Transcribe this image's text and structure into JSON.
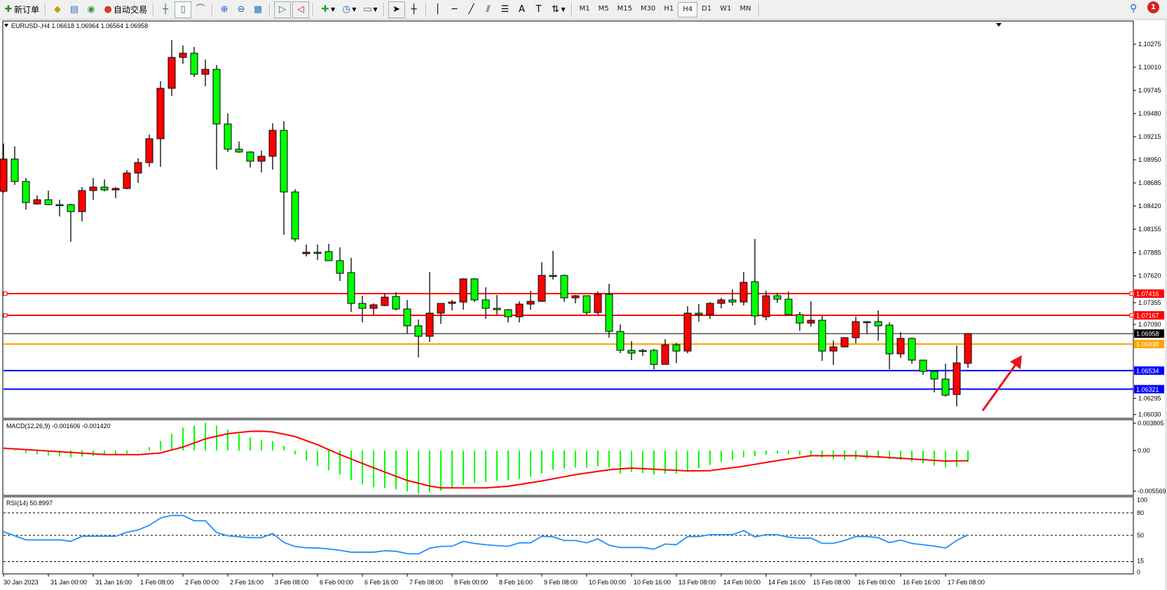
{
  "toolbar": {
    "new_order_label": "新订单",
    "auto_trading_label": "自动交易",
    "icons": [
      "new-order-icon",
      "history-icon",
      "market-watch-icon",
      "signals-icon",
      "auto-trading-icon",
      "bar-chart-icon",
      "candlestick-icon",
      "line-chart-icon",
      "zoom-in-icon",
      "zoom-out-icon",
      "tile-windows-icon",
      "chart-shift-icon",
      "autoscroll-icon",
      "indicators-icon",
      "periods-icon",
      "templates-icon",
      "cursor-icon",
      "crosshair-icon",
      "vertical-line-icon",
      "horizontal-line-icon",
      "trendline-icon",
      "channel-icon",
      "fibonacci-icon",
      "text-icon",
      "text-label-icon",
      "arrows-icon"
    ],
    "timeframes": [
      "M1",
      "M5",
      "M15",
      "M30",
      "H1",
      "H4",
      "D1",
      "W1",
      "MN"
    ],
    "active_timeframe": "H4",
    "notification_count": "1"
  },
  "chart": {
    "header": "EURUSD-,H4  1.06618 1.06964 1.06564 1.06958",
    "colors": {
      "bull": "#ff0000",
      "bear": "#00ff00",
      "macd_hist": "#00ff00",
      "macd_signal": "#ff0000",
      "rsi": "#1e90ff"
    },
    "price_ticks": [
      "1.10275",
      "1.10010",
      "1.09745",
      "1.09480",
      "1.09215",
      "1.08950",
      "1.08685",
      "1.08420",
      "1.08155",
      "1.07885",
      "1.07620",
      "1.07355",
      "1.07090",
      "1.06295",
      "1.06030"
    ],
    "price_tick_values": [
      1.10275,
      1.1001,
      1.09745,
      1.0948,
      1.09215,
      1.0895,
      1.08685,
      1.0842,
      1.08155,
      1.07885,
      1.0762,
      1.07355,
      1.0709,
      1.06295,
      1.0603
    ],
    "hlines": [
      {
        "price": 1.07416,
        "label": "1.07416",
        "color": "#ff0000"
      },
      {
        "price": 1.07167,
        "label": "1.07167",
        "color": "#ff0000"
      },
      {
        "price": 1.06958,
        "label": "1.06958",
        "color": "#000000"
      },
      {
        "price": 1.06838,
        "label": "1.06838",
        "color": "#ffa500"
      },
      {
        "price": 1.06534,
        "label": "1.06534",
        "color": "#0000ff"
      },
      {
        "price": 1.06321,
        "label": "1.06321",
        "color": "#0000ff"
      }
    ],
    "arrow_annotation": {
      "color": "#e8141e",
      "direction": "up-right"
    },
    "date_labels": [
      "30 Jan 2023",
      "31 Jan 00:00",
      "31 Jan 16:00",
      "1 Feb 08:00",
      "2 Feb 00:00",
      "2 Feb 16:00",
      "3 Feb 08:00",
      "6 Feb 00:00",
      "6 Feb 16:00",
      "7 Feb 08:00",
      "8 Feb 00:00",
      "8 Feb 16:00",
      "9 Feb 08:00",
      "10 Feb 00:00",
      "10 Feb 16:00",
      "13 Feb 08:00",
      "14 Feb 00:00",
      "14 Feb 16:00",
      "15 Feb 08:00",
      "16 Feb 00:00",
      "16 Feb 16:00",
      "17 Feb 08:00"
    ]
  },
  "chart_data": [
    {
      "type": "candlestick",
      "symbol": "EURUSD-",
      "timeframe": "H4",
      "ylim": [
        1.06015,
        1.1054
      ],
      "ohlc_order": [
        "open",
        "high",
        "low",
        "close"
      ],
      "candles": [
        [
          1.08589,
          1.09135,
          1.08573,
          1.08958
        ],
        [
          1.08958,
          1.09103,
          1.08661,
          1.08701
        ],
        [
          1.08701,
          1.08741,
          1.0838,
          1.0846
        ],
        [
          1.08444,
          1.08541,
          1.08436,
          1.08492
        ],
        [
          1.08492,
          1.08597,
          1.08428,
          1.08436
        ],
        [
          1.08436,
          1.08492,
          1.083,
          1.08432
        ],
        [
          1.08436,
          1.08444,
          1.08011,
          1.08356
        ],
        [
          1.08356,
          1.08637,
          1.08244,
          1.08597
        ],
        [
          1.08597,
          1.08741,
          1.08492,
          1.08637
        ],
        [
          1.08637,
          1.08725,
          1.08589,
          1.08605
        ],
        [
          1.08605,
          1.08637,
          1.08509,
          1.08621
        ],
        [
          1.08621,
          1.0883,
          1.08613,
          1.08798
        ],
        [
          1.08798,
          1.08966,
          1.08685,
          1.08918
        ],
        [
          1.08918,
          1.09239,
          1.0887,
          1.09191
        ],
        [
          1.09191,
          1.0985,
          1.0887,
          1.09769
        ],
        [
          1.09769,
          1.10323,
          1.09681,
          1.10123
        ],
        [
          1.10123,
          1.10259,
          1.1005,
          1.10171
        ],
        [
          1.10171,
          1.10243,
          1.09898,
          1.0993
        ],
        [
          1.0993,
          1.10098,
          1.09793,
          1.09986
        ],
        [
          1.09986,
          1.10034,
          1.08838,
          1.0936
        ],
        [
          1.0936,
          1.0948,
          1.09039,
          1.09071
        ],
        [
          1.09071,
          1.09159,
          1.09031,
          1.09039
        ],
        [
          1.09039,
          1.09047,
          1.08862,
          1.08934
        ],
        [
          1.08934,
          1.09055,
          1.08806,
          1.0899
        ],
        [
          1.0899,
          1.09368,
          1.08838,
          1.09287
        ],
        [
          1.09287,
          1.09392,
          1.08091,
          1.08581
        ],
        [
          1.08581,
          1.08613,
          1.08011,
          1.08043
        ],
        [
          1.07874,
          1.07979,
          1.07842,
          1.0789
        ],
        [
          1.0789,
          1.07979,
          1.07802,
          1.07886
        ],
        [
          1.07898,
          1.07987,
          1.0779,
          1.07794
        ],
        [
          1.07794,
          1.07946,
          1.07561,
          1.07649
        ],
        [
          1.07657,
          1.07826,
          1.07208,
          1.07304
        ],
        [
          1.07304,
          1.07392,
          1.07087,
          1.07248
        ],
        [
          1.07248,
          1.07304,
          1.07176,
          1.07288
        ],
        [
          1.0728,
          1.07416,
          1.07272,
          1.07376
        ],
        [
          1.07384,
          1.07433,
          1.07224,
          1.0724
        ],
        [
          1.0724,
          1.07344,
          1.06959,
          1.07047
        ],
        [
          1.07047,
          1.07119,
          1.06686,
          1.06927
        ],
        [
          1.06927,
          1.07665,
          1.06862,
          1.07192
        ],
        [
          1.07192,
          1.07304,
          1.07071,
          1.07304
        ],
        [
          1.07304,
          1.07344,
          1.07224,
          1.0732
        ],
        [
          1.0732,
          1.07593,
          1.07232,
          1.07585
        ],
        [
          1.07585,
          1.07593,
          1.0732,
          1.07344
        ],
        [
          1.07344,
          1.07489,
          1.07127,
          1.07248
        ],
        [
          1.07248,
          1.074,
          1.07176,
          1.07232
        ],
        [
          1.07232,
          1.0724,
          1.07087,
          1.07151
        ],
        [
          1.07151,
          1.07328,
          1.07087,
          1.07296
        ],
        [
          1.07296,
          1.07449,
          1.07232,
          1.07328
        ],
        [
          1.07328,
          1.07778,
          1.0732,
          1.07625
        ],
        [
          1.07625,
          1.07906,
          1.07577,
          1.0762
        ],
        [
          1.07625,
          1.07633,
          1.0732,
          1.07368
        ],
        [
          1.07368,
          1.074,
          1.07304,
          1.07392
        ],
        [
          1.07392,
          1.07392,
          1.07176,
          1.072
        ],
        [
          1.072,
          1.07441,
          1.07176,
          1.07408
        ],
        [
          1.07408,
          1.07529,
          1.06911,
          1.06983
        ],
        [
          1.06983,
          1.07063,
          1.06734,
          1.06766
        ],
        [
          1.06766,
          1.0687,
          1.06654,
          1.06734
        ],
        [
          1.06766,
          1.06782,
          1.06702,
          1.06762
        ],
        [
          1.06766,
          1.06782,
          1.06549,
          1.06605
        ],
        [
          1.06605,
          1.06895,
          1.06605,
          1.0683
        ],
        [
          1.0683,
          1.06854,
          1.06621,
          1.06758
        ],
        [
          1.06758,
          1.07272,
          1.06734,
          1.07192
        ],
        [
          1.07192,
          1.07296,
          1.07095,
          1.07176
        ],
        [
          1.07176,
          1.0732,
          1.07127,
          1.07304
        ],
        [
          1.07304,
          1.07368,
          1.07248,
          1.07344
        ],
        [
          1.07344,
          1.07465,
          1.0728,
          1.0732
        ],
        [
          1.0732,
          1.07665,
          1.0728,
          1.07545
        ],
        [
          1.07553,
          1.08043,
          1.07055,
          1.0716
        ],
        [
          1.07151,
          1.07449,
          1.07111,
          1.07392
        ],
        [
          1.07392,
          1.07425,
          1.07312,
          1.07352
        ],
        [
          1.07352,
          1.07441,
          1.0717,
          1.07176
        ],
        [
          1.07176,
          1.07208,
          1.06991,
          1.07079
        ],
        [
          1.07079,
          1.07328,
          1.07039,
          1.07111
        ],
        [
          1.07111,
          1.0716,
          1.06646,
          1.06758
        ],
        [
          1.06758,
          1.06878,
          1.06597,
          1.06806
        ],
        [
          1.06806,
          1.06919,
          1.06798,
          1.06911
        ],
        [
          1.06911,
          1.07151,
          1.06846,
          1.07095
        ],
        [
          1.07095,
          1.07103,
          1.06959,
          1.0709
        ],
        [
          1.07095,
          1.07224,
          1.06878,
          1.07047
        ],
        [
          1.07055,
          1.07087,
          1.06549,
          1.06726
        ],
        [
          1.06726,
          1.06975,
          1.06678,
          1.06903
        ],
        [
          1.06903,
          1.06911,
          1.06613,
          1.06654
        ],
        [
          1.06654,
          1.06654,
          1.06485,
          1.06525
        ],
        [
          1.06525,
          1.06533,
          1.06284,
          1.06437
        ],
        [
          1.06437,
          1.06613,
          1.06236,
          1.06252
        ],
        [
          1.0626,
          1.06822,
          1.06124,
          1.06622
        ],
        [
          1.06618,
          1.06964,
          1.06564,
          1.06958
        ]
      ]
    },
    {
      "type": "bar",
      "title": "MACD(12,26,9) -0.001606 -0.001420",
      "axis_labels": [
        "0.003805",
        "0.00",
        "-0.005569"
      ],
      "axis_values": [
        0.003805,
        0.0,
        -0.005569
      ],
      "series": [
        {
          "values": [
            0.0001,
            -3e-05,
            -0.00033,
            -0.00049,
            -0.00068,
            -0.00081,
            -0.00098,
            -0.00085,
            -0.00078,
            -0.00059,
            -0.00052,
            -0.00042,
            -0.0001,
            0.00046,
            0.00133,
            0.00231,
            0.00319,
            0.00348,
            0.00387,
            0.00348,
            0.0029,
            0.00231,
            0.00182,
            0.00143,
            0.00133,
            0.00065,
            -0.00049,
            -0.0014,
            -0.00218,
            -0.00277,
            -0.00335,
            -0.00413,
            -0.00472,
            -0.00511,
            -0.00521,
            -0.0054,
            -0.00569,
            -0.00599,
            -0.00579,
            -0.0056,
            -0.00521,
            -0.00482,
            -0.00452,
            -0.00439,
            -0.00423,
            -0.00413,
            -0.00394,
            -0.00364,
            -0.00316,
            -0.00267,
            -0.00254,
            -0.00238,
            -0.00238,
            -0.00218,
            -0.00238,
            -0.00325,
            -0.00296,
            -0.00316,
            -0.00335,
            -0.00325,
            -0.00325,
            -0.00277,
            -0.00244,
            -0.00198,
            -0.00159,
            -0.0013,
            -0.00091,
            -0.00081,
            -0.00059,
            -0.00042,
            -0.00052,
            -0.00062,
            -0.00062,
            -0.00101,
            -0.0012,
            -0.0013,
            -0.0012,
            -0.00111,
            -0.00101,
            -0.0012,
            -0.0013,
            -0.0015,
            -0.00179,
            -0.00208,
            -0.00238,
            -0.00228,
            -0.001606
          ]
        },
        {
          "type": "line",
          "values": [
            0.00033,
            0.00023,
            0.00013,
            4e-05,
            -6e-05,
            -0.00016,
            -0.00026,
            -0.00036,
            -0.00045,
            -0.00055,
            -0.00056,
            -0.00056,
            -0.00057,
            -0.00045,
            -0.00033,
            8e-05,
            0.00049,
            0.00106,
            0.00163,
            0.00199,
            0.00234,
            0.00251,
            0.00267,
            0.0027,
            0.0026,
            0.00228,
            0.00195,
            0.00138,
            0.00081,
            0.00013,
            -0.00055,
            -0.00117,
            -0.00179,
            -0.0024,
            -0.003,
            -0.00358,
            -0.00416,
            -0.00455,
            -0.00494,
            -0.0052,
            -0.0052,
            -0.0052,
            -0.0052,
            -0.0052,
            -0.00509,
            -0.00498,
            -0.00473,
            -0.00448,
            -0.00423,
            -0.00394,
            -0.00364,
            -0.00335,
            -0.00312,
            -0.0029,
            -0.00267,
            -0.00256,
            -0.00244,
            -0.00252,
            -0.0026,
            -0.00268,
            -0.00275,
            -0.00283,
            -0.00282,
            -0.0028,
            -0.00259,
            -0.00239,
            -0.00218,
            -0.00192,
            -0.00166,
            -0.0014,
            -0.00117,
            -0.00095,
            -0.00072,
            -0.00072,
            -0.00072,
            -0.00072,
            -0.00072,
            -0.0008,
            -0.00088,
            -0.00098,
            -0.00107,
            -0.00117,
            -0.00127,
            -0.00136,
            -0.00146,
            -0.00144,
            -0.00142
          ]
        }
      ]
    },
    {
      "type": "line",
      "title": "RSI(14) 50.8997",
      "ylim": [
        0,
        100
      ],
      "axis_labels": [
        "100",
        "80",
        "50",
        "15",
        "0"
      ],
      "levels": [
        80,
        50,
        15
      ],
      "values": [
        54.7,
        49.4,
        44,
        44,
        44,
        44,
        42,
        48.8,
        48.8,
        48.8,
        48.8,
        54,
        57.2,
        63.4,
        73.1,
        76.6,
        76.6,
        69.4,
        69.4,
        53.8,
        49.4,
        48.1,
        46.9,
        46.9,
        52.5,
        40.6,
        35,
        33.4,
        33.1,
        31.9,
        30,
        27.5,
        27.5,
        27.5,
        29.4,
        28.8,
        25.6,
        25.3,
        32.8,
        35.3,
        35.6,
        41.9,
        39.1,
        37.5,
        36.3,
        35.3,
        40,
        40,
        48.8,
        48.1,
        43.1,
        43.1,
        40,
        45.3,
        36.9,
        33.8,
        33.8,
        33.8,
        31.6,
        38.4,
        37.5,
        48.4,
        48.4,
        50.9,
        50.9,
        50.9,
        56.3,
        47.8,
        50.9,
        50.9,
        47.5,
        46.3,
        46.3,
        39.4,
        39.4,
        43.1,
        48.4,
        48.4,
        46.9,
        40.3,
        43.8,
        39.1,
        37.5,
        35.6,
        33.1,
        43.1,
        50.8997
      ]
    }
  ]
}
